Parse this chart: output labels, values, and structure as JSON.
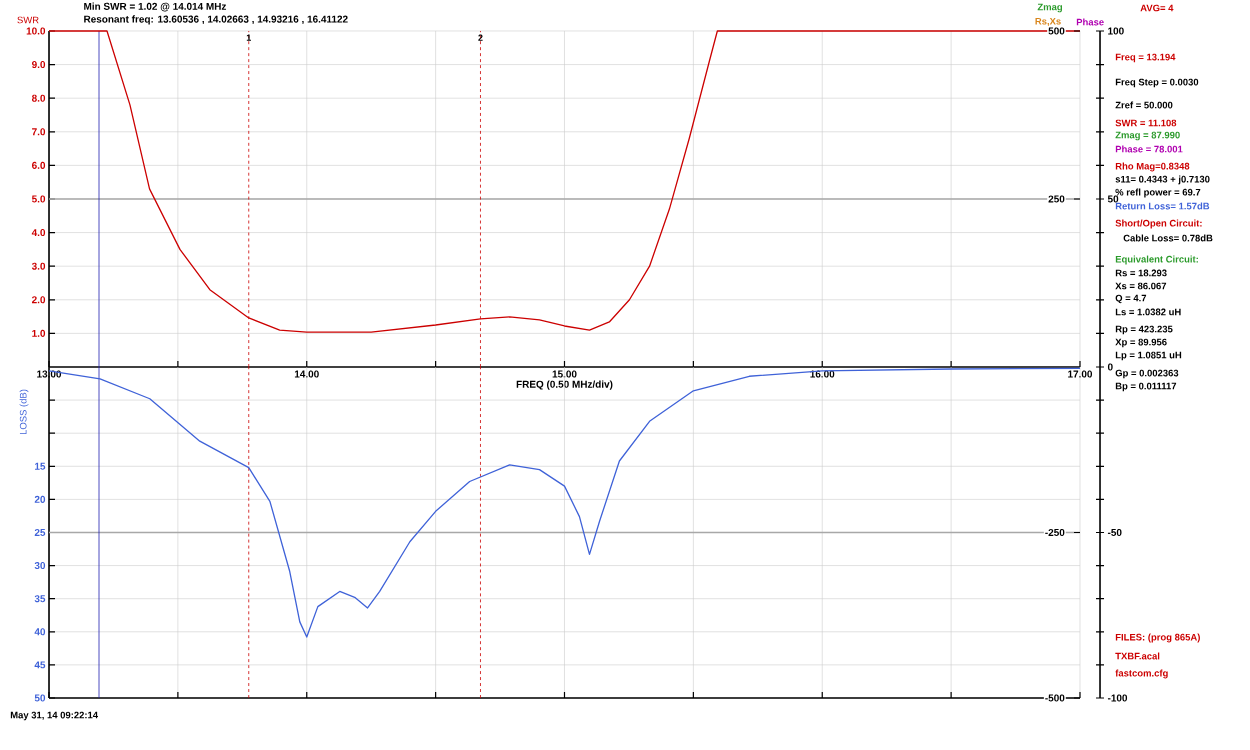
{
  "chart_data": [
    {
      "type": "line",
      "title": "Min SWR =  1.02 @  14.014 MHz",
      "subtitle": "Resonant freq:  13.60536 , 14.02663 , 14.93216 , 16.41122",
      "ylabel": "SWR",
      "xlabel": "FREQ (0.50 MHz/div)",
      "x": [
        13.0,
        13.225,
        13.314,
        13.39,
        13.508,
        13.624,
        13.775,
        13.895,
        14.0,
        14.25,
        14.5,
        14.674,
        14.787,
        14.903,
        15.0,
        15.097,
        15.174,
        15.252,
        15.33,
        15.407,
        15.484,
        15.562,
        15.593,
        17.0
      ],
      "series": [
        {
          "color": "#cc0000",
          "values": [
            10,
            10,
            7.8,
            5.3,
            3.5,
            2.3,
            1.46,
            1.1,
            1.04,
            1.04,
            1.25,
            1.43,
            1.49,
            1.4,
            1.22,
            1.1,
            1.34,
            2.0,
            3.0,
            4.7,
            6.8,
            9.1,
            10,
            10
          ]
        }
      ],
      "xlim": [
        13,
        17
      ],
      "xticks": [
        {
          "value": 13,
          "label": "13.00"
        },
        {
          "value": 13.5,
          "label": null
        },
        {
          "value": 14,
          "label": "14.00"
        },
        {
          "value": 14.5,
          "label": null
        },
        {
          "value": 15,
          "label": "15.00"
        },
        {
          "value": 15.5,
          "label": null
        },
        {
          "value": 16,
          "label": "16.00"
        },
        {
          "value": 16.5,
          "label": null
        },
        {
          "value": 17,
          "label": "17.00"
        }
      ],
      "ylim": [
        0,
        10
      ],
      "yticks": [
        {
          "value": 1,
          "label": "1.0"
        },
        {
          "value": 2,
          "label": "2.0"
        },
        {
          "value": 3,
          "label": "3.0"
        },
        {
          "value": 4,
          "label": "4.0"
        },
        {
          "value": 5,
          "label": "5.0"
        },
        {
          "value": 6,
          "label": "6.0"
        },
        {
          "value": 7,
          "label": "7.0"
        },
        {
          "value": 8,
          "label": "8.0"
        },
        {
          "value": 9,
          "label": "9.0"
        },
        {
          "value": 10,
          "label": "10.0"
        }
      ],
      "y2lim": [
        0,
        500
      ],
      "y2ticks": [
        250,
        500
      ],
      "y3lim": [
        0,
        100
      ],
      "y3ticks": [
        0,
        {
          "value": 10,
          "label": null
        },
        {
          "value": 20,
          "label": null
        },
        {
          "value": 30,
          "label": null
        },
        {
          "value": 40,
          "label": null
        },
        50,
        {
          "value": 60,
          "label": null
        },
        {
          "value": 70,
          "label": null
        },
        {
          "value": 80,
          "label": null
        },
        {
          "value": 90,
          "label": null
        },
        100
      ],
      "grid": true,
      "ref_lines": [
        {
          "axis": "y2",
          "value": 250,
          "color": "#a8a8a8"
        },
        {
          "axis": "x",
          "value": 13.194,
          "color": "#2020b0"
        },
        {
          "axis": "x",
          "value": 13.775,
          "color": "#cc0000",
          "line_style": "dashed"
        },
        {
          "axis": "x",
          "value": 14.674,
          "color": "#cc0000",
          "line_style": "dashed"
        }
      ],
      "annotations": [
        {
          "text": "1",
          "x": 13.775,
          "y": 9.8
        },
        {
          "text": "2",
          "x": 14.674,
          "y": 9.8
        },
        "Zmag",
        "Rs,Xs",
        "Phase",
        "AVG=  4",
        "Freq = 13.194",
        "Freq Step = 0.0030",
        "Zref =   50.000",
        "SWR  =  11.108",
        "Zmag =   87.990",
        "Phase =   78.001",
        "Rho Mag=0.8348",
        "s11= 0.4343 + j0.7130",
        "% refl power = 69.7",
        "Return Loss=  1.57dB",
        "Short/Open Circuit:",
        "Cable Loss=  0.78dB",
        "Equivalent Circuit:",
        "Rs =  18.293",
        "Xs =  86.067",
        "Q =  4.7",
        "Ls =     1.0382 uH",
        "Rp =  423.235",
        "Xp =  89.956",
        "Lp =   1.0851  uH",
        "Gp =  0.002363",
        "Bp =  0.011117",
        "FILES:  (prog 865A)",
        "TXBF.acal",
        "fastcom.cfg",
        "May 31, 14  09:22:14"
      ]
    },
    {
      "type": "line",
      "ylabel": "LOSS (dB)",
      "x": [
        13.0,
        13.198,
        13.391,
        13.585,
        13.775,
        13.857,
        13.934,
        13.973,
        14.0,
        14.043,
        14.128,
        14.186,
        14.236,
        14.283,
        14.4,
        14.5,
        14.632,
        14.787,
        14.903,
        15.0,
        15.058,
        15.097,
        15.136,
        15.213,
        15.33,
        15.5,
        15.717,
        16.0,
        16.5,
        17.0
      ],
      "series": [
        {
          "color": "#3f62d8",
          "values": [
            0.6,
            1.8,
            4.8,
            11.2,
            15.2,
            20.3,
            30.9,
            38.5,
            40.8,
            36.2,
            33.9,
            34.8,
            36.4,
            33.9,
            26.4,
            21.8,
            17.3,
            14.8,
            15.5,
            18.0,
            22.6,
            28.3,
            23.3,
            14.2,
            8.2,
            3.6,
            1.4,
            0.6,
            0.3,
            0.2
          ]
        }
      ],
      "xlim": [
        13,
        17
      ],
      "xticks": [
        13,
        13.5,
        14,
        14.5,
        15,
        15.5,
        16,
        16.5,
        17
      ],
      "ylim": [
        50,
        0
      ],
      "yticks": [
        {
          "value": 5,
          "label": null
        },
        {
          "value": 10,
          "label": null
        },
        15,
        20,
        25,
        30,
        35,
        40,
        45,
        50
      ],
      "y2lim": [
        -500,
        0
      ],
      "y2ticks": [
        -500,
        -250
      ],
      "y3lim": [
        -100,
        0
      ],
      "y3ticks": [
        -100,
        {
          "value": -90,
          "label": null
        },
        {
          "value": -80,
          "label": null
        },
        {
          "value": -70,
          "label": null
        },
        {
          "value": -60,
          "label": null
        },
        -50,
        {
          "value": -40,
          "label": null
        },
        {
          "value": -30,
          "label": null
        },
        {
          "value": -20,
          "label": null
        },
        {
          "value": -10,
          "label": null
        }
      ],
      "tick_labels": "y",
      "grid": true,
      "ref_lines": [
        {
          "axis": "y2",
          "value": -250,
          "color": "#a8a8a8"
        },
        {
          "axis": "x",
          "value": 13.194,
          "color": "#2020b0"
        },
        {
          "axis": "x",
          "value": 13.775,
          "color": "#cc0000",
          "line_style": "dashed"
        },
        {
          "axis": "x",
          "value": 14.674,
          "color": "#cc0000",
          "line_style": "dashed"
        }
      ]
    }
  ]
}
